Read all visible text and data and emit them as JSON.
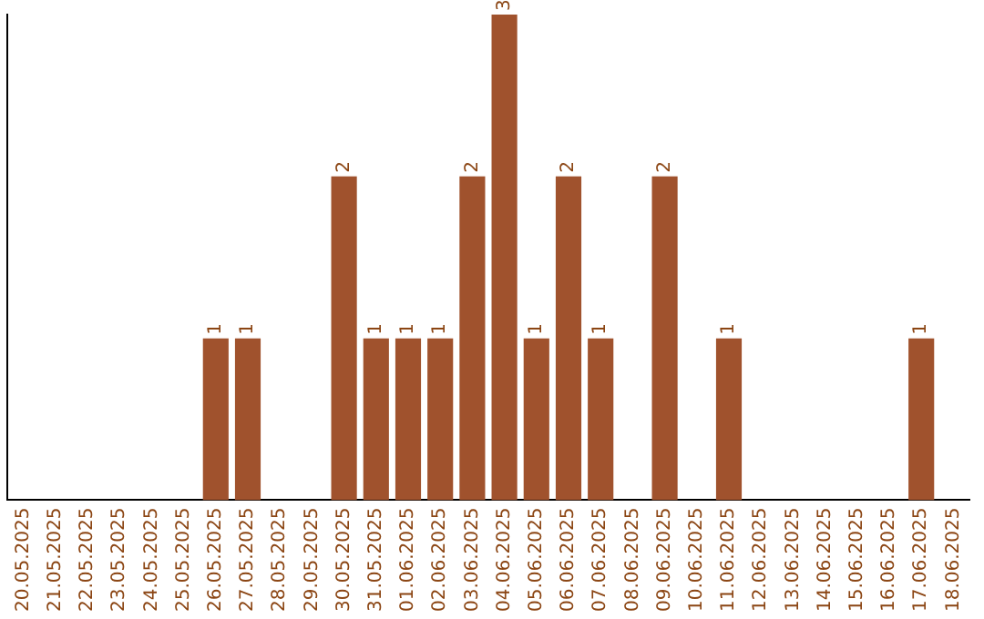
{
  "chart_data": {
    "type": "bar",
    "categories": [
      "20.05.2025",
      "21.05.2025",
      "22.05.2025",
      "23.05.2025",
      "24.05.2025",
      "25.05.2025",
      "26.05.2025",
      "27.05.2025",
      "28.05.2025",
      "29.05.2025",
      "30.05.2025",
      "31.05.2025",
      "01.06.2025",
      "02.06.2025",
      "03.06.2025",
      "04.06.2025",
      "05.06.2025",
      "06.06.2025",
      "07.06.2025",
      "08.06.2025",
      "09.06.2025",
      "10.06.2025",
      "11.06.2025",
      "12.06.2025",
      "13.06.2025",
      "14.06.2025",
      "15.06.2025",
      "16.06.2025",
      "17.06.2025",
      "18.06.2025"
    ],
    "values": [
      0,
      0,
      0,
      0,
      0,
      0,
      1,
      1,
      0,
      0,
      2,
      1,
      1,
      1,
      2,
      3,
      1,
      2,
      1,
      0,
      2,
      0,
      1,
      0,
      0,
      0,
      0,
      0,
      1,
      0
    ],
    "value_labels": [
      null,
      null,
      null,
      null,
      null,
      null,
      "1",
      "1",
      null,
      null,
      "2",
      "1",
      "1",
      "1",
      "2",
      "3",
      "1",
      "2",
      "1",
      null,
      "2",
      null,
      "1",
      null,
      null,
      null,
      null,
      null,
      "1",
      null
    ],
    "color": "#a0522d",
    "tick_labels": "x",
    "grid": false,
    "legend": false
  }
}
